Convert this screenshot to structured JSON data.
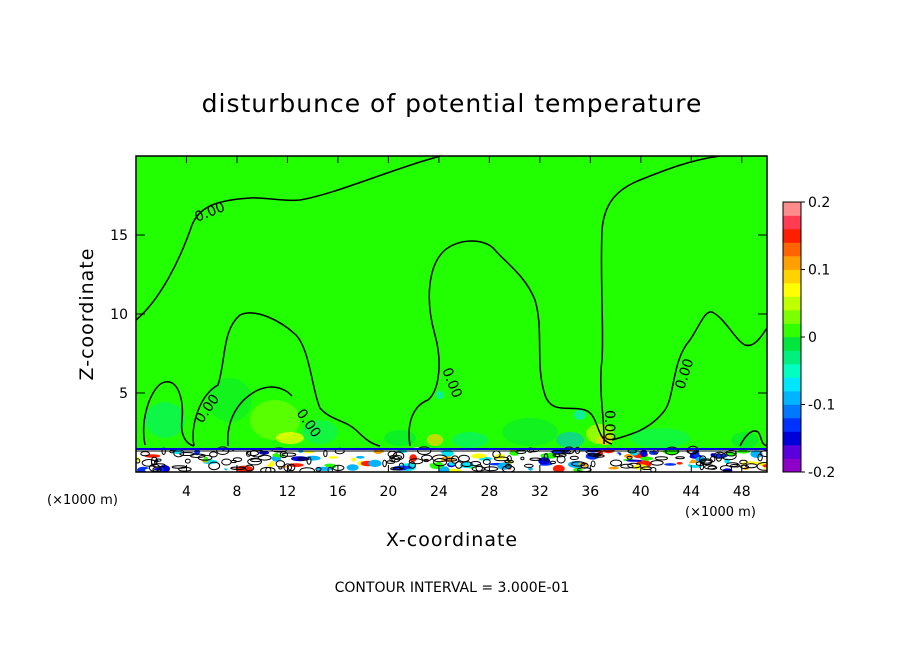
{
  "chart_data": {
    "type": "heatmap",
    "title": "disturbunce of potential temperature",
    "xlabel": "X-coordinate",
    "ylabel": "Z-coordinate",
    "x_unit": "(×1000 m)",
    "y_unit": "(×1000 m)",
    "xlim": [
      0,
      50
    ],
    "ylim": [
      0,
      20
    ],
    "x_ticks": [
      4,
      8,
      12,
      16,
      20,
      24,
      28,
      32,
      36,
      40,
      44,
      48
    ],
    "y_ticks": [
      5,
      10,
      15
    ],
    "colorbar": {
      "min": -0.2,
      "max": 0.2,
      "tick_labels": [
        "0.2",
        "0.1",
        "0",
        "-0.1",
        "-0.2"
      ],
      "tick_values": [
        0.2,
        0.1,
        0,
        -0.1,
        -0.2
      ],
      "colors": [
        "#8e00c8",
        "#5a00dc",
        "#0000d8",
        "#0032ff",
        "#0078ff",
        "#00b4ff",
        "#00e6ff",
        "#00ffc0",
        "#00f080",
        "#00e63c",
        "#32ff00",
        "#7cff00",
        "#c0ff00",
        "#ffff00",
        "#ffd200",
        "#ffa000",
        "#ff6400",
        "#ff1e00",
        "#ff3c50",
        "#ff8c8c"
      ]
    },
    "background_value": 0,
    "background_color": "#22ff00",
    "contour_labels": [
      "0.00",
      "0.00",
      "0.00",
      "0.00",
      "0.00",
      "0.00"
    ],
    "contour_interval_note": "CONTOUR INTERVAL = 3.000E-01"
  }
}
